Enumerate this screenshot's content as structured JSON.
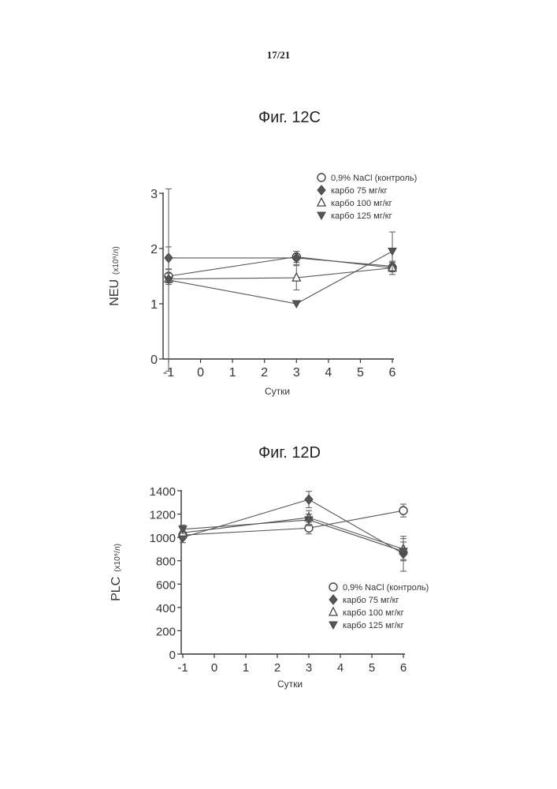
{
  "page": {
    "number": "17/21"
  },
  "figures": [
    {
      "title": "Фиг. 12C"
    },
    {
      "title": "Фиг. 12D"
    }
  ],
  "chart_data": [
    {
      "type": "line",
      "title": "Фиг. 12C",
      "xlabel": "Сутки",
      "ylabel": "NEU",
      "ylabel_unit": "(x10⁹/л)",
      "xlim": [
        -1,
        6
      ],
      "ylim": [
        0,
        3
      ],
      "xticks": [
        "-1",
        "0",
        "1",
        "2",
        "3",
        "4",
        "5",
        "6"
      ],
      "yticks": [
        "0",
        "1",
        "2",
        "3"
      ],
      "x": [
        -1,
        3,
        6
      ],
      "grid": false,
      "legend_position": "top-right",
      "series": [
        {
          "name": "0,9% NaCl (контроль)",
          "marker": "circle-open",
          "values": [
            1.5,
            1.85,
            1.65
          ],
          "errors": [
            0.12,
            0.1,
            0.07
          ]
        },
        {
          "name": "карбо 75 мг/кг",
          "marker": "diamond-filled",
          "values": [
            1.83,
            1.83,
            1.68
          ],
          "errors": [
            0.2,
            0.12,
            0.07
          ]
        },
        {
          "name": "карбо 100 мг/кг",
          "marker": "triangle-open",
          "values": [
            1.45,
            1.47,
            1.65
          ],
          "errors": [
            0.1,
            0.22,
            0.12
          ]
        },
        {
          "name": "карбо 125 мг/кг",
          "marker": "triangle-down-filled",
          "values": [
            1.43,
            1.0,
            1.95
          ],
          "errors": [
            1.65,
            0,
            0.35
          ]
        }
      ]
    },
    {
      "type": "line",
      "title": "Фиг. 12D",
      "xlabel": "Сутки",
      "ylabel": "PLC",
      "ylabel_unit": "(x10⁹/л)",
      "xlim": [
        -1,
        6
      ],
      "ylim": [
        0,
        1400
      ],
      "xticks": [
        "-1",
        "0",
        "1",
        "2",
        "3",
        "4",
        "5",
        "6"
      ],
      "yticks": [
        "0",
        "200",
        "400",
        "600",
        "800",
        "1000",
        "1200",
        "1400"
      ],
      "x": [
        -1,
        3,
        6
      ],
      "grid": false,
      "legend_position": "bottom-right",
      "series": [
        {
          "name": "0,9% NaCl (контроль)",
          "marker": "circle-open",
          "values": [
            1020,
            1080,
            1230
          ],
          "errors": [
            35,
            50,
            55
          ]
        },
        {
          "name": "карбо 75 мг/кг",
          "marker": "diamond-filled",
          "values": [
            1000,
            1325,
            860
          ],
          "errors": [
            45,
            70,
            150
          ]
        },
        {
          "name": "карбо 100 мг/кг",
          "marker": "triangle-open",
          "values": [
            1040,
            1170,
            900
          ],
          "errors": [
            40,
            60,
            90
          ]
        },
        {
          "name": "карбо 125 мг/кг",
          "marker": "triangle-down-filled",
          "values": [
            1070,
            1150,
            880
          ],
          "errors": [
            35,
            50,
            80
          ]
        }
      ]
    }
  ]
}
